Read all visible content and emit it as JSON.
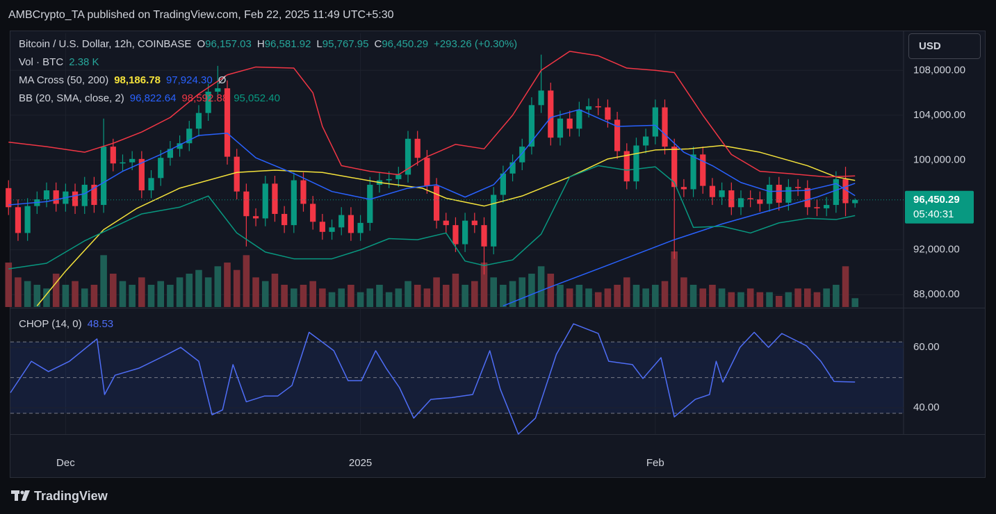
{
  "header": "AMBCrypto_TA published on TradingView.com, Feb 22, 2025 11:49 UTC+5:30",
  "footer": "TradingView",
  "currency": "USD",
  "chart_data": [
    {
      "type": "candlestick",
      "title": "Bitcoin / U.S. Dollar, 12h, COINBASE",
      "legend": {
        "ohlc_labels": [
          "O",
          "H",
          "L",
          "C"
        ],
        "ohlc_values": [
          "96,157.03",
          "96,581.92",
          "95,767.95",
          "96,450.29"
        ],
        "change": "+293.26 (+0.30%)"
      },
      "up_color": "#089981",
      "down_color": "#f23645",
      "x": [
        0,
        1,
        2,
        3,
        4,
        5,
        6,
        7,
        8,
        9,
        10,
        11,
        12,
        13,
        14,
        15,
        16,
        17,
        18,
        19,
        20,
        21,
        22,
        23,
        24,
        25,
        26,
        27,
        28,
        29,
        30,
        31,
        32,
        33,
        34,
        35,
        36,
        37,
        38,
        39,
        40,
        41,
        42,
        43,
        44,
        45,
        46,
        47,
        48,
        49,
        50,
        51,
        52,
        53,
        54,
        55,
        56,
        57,
        58,
        59,
        60,
        61,
        62,
        63,
        64,
        65,
        66,
        67,
        68,
        69,
        70,
        71,
        72,
        73,
        74,
        75,
        76,
        77,
        78,
        79,
        80,
        81,
        82,
        83,
        84,
        85,
        86,
        87,
        88,
        89
      ],
      "open": [
        97500,
        95800,
        93500,
        95900,
        96500,
        97300,
        96100,
        97200,
        95900,
        97800,
        96000,
        101200,
        99700,
        99800,
        100100,
        97300,
        98400,
        100200,
        101000,
        101500,
        102800,
        104200,
        106100,
        106400,
        100300,
        97200,
        95000,
        94800,
        97900,
        95200,
        94200,
        98200,
        96100,
        94500,
        93600,
        94000,
        95100,
        93500,
        94400,
        97800,
        98200,
        98300,
        98700,
        101900,
        100200,
        97700,
        94600,
        94200,
        92500,
        94600,
        94200,
        92300,
        96900,
        98800,
        99800,
        101200,
        104900,
        106200,
        102000,
        103700,
        102800,
        104500,
        104800,
        104700,
        103600,
        100800,
        98100,
        101300,
        102100,
        104700,
        101200,
        97600,
        97400,
        100500,
        97700,
        96700,
        97300,
        95800,
        96600,
        96500,
        96100,
        97800,
        96200,
        97600,
        97500,
        95800,
        95700,
        96000,
        98300,
        96157.03
      ],
      "high": [
        98200,
        96500,
        96600,
        97200,
        98000,
        98000,
        97900,
        97900,
        98500,
        98500,
        103700,
        101900,
        100500,
        100800,
        100800,
        99100,
        100900,
        101700,
        102200,
        103500,
        104900,
        106800,
        108400,
        107100,
        101000,
        97900,
        95700,
        98600,
        98600,
        95900,
        98900,
        98900,
        96800,
        95200,
        94700,
        95800,
        95800,
        95100,
        98500,
        98900,
        99000,
        99400,
        102600,
        102600,
        100900,
        98400,
        95300,
        94900,
        95300,
        95300,
        94900,
        97600,
        99500,
        100500,
        101900,
        105600,
        109400,
        106900,
        104400,
        104400,
        105200,
        105500,
        105500,
        105400,
        104300,
        101500,
        102000,
        102800,
        105400,
        105400,
        101900,
        98300,
        101200,
        101200,
        98400,
        98000,
        98000,
        97300,
        97300,
        97200,
        98500,
        98500,
        98300,
        98300,
        98200,
        96500,
        96700,
        99000,
        99400,
        96581.92
      ],
      "low": [
        95100,
        92800,
        92800,
        95200,
        95800,
        95400,
        95400,
        95200,
        95200,
        95300,
        95300,
        99000,
        99000,
        99100,
        96600,
        96600,
        97700,
        99500,
        100300,
        100800,
        102100,
        103500,
        105400,
        99600,
        96500,
        92300,
        94100,
        94100,
        94500,
        93500,
        93500,
        95400,
        93800,
        92900,
        92900,
        93300,
        92800,
        92800,
        93700,
        97100,
        97500,
        97600,
        98000,
        99500,
        97000,
        93900,
        93500,
        91800,
        91800,
        93500,
        89800,
        91600,
        96200,
        98100,
        99100,
        100500,
        104200,
        101300,
        101300,
        102100,
        102100,
        103800,
        104000,
        102900,
        100100,
        97400,
        97400,
        100600,
        101400,
        100500,
        91200,
        96700,
        96700,
        97000,
        96000,
        96000,
        95100,
        95100,
        95800,
        95400,
        95400,
        95500,
        95500,
        96800,
        95100,
        95000,
        95000,
        95300,
        95000,
        95767.95
      ],
      "close": [
        95800,
        93500,
        95900,
        96500,
        97300,
        96100,
        97200,
        95900,
        97800,
        96000,
        101200,
        99700,
        99800,
        100100,
        97300,
        98400,
        100200,
        101000,
        101500,
        102800,
        104200,
        106100,
        106400,
        100300,
        97200,
        95000,
        94800,
        97900,
        95200,
        94200,
        98200,
        96100,
        94500,
        93600,
        94000,
        95100,
        93500,
        94400,
        97800,
        98200,
        98300,
        98700,
        101900,
        100200,
        97700,
        94600,
        94200,
        92500,
        94600,
        94200,
        92300,
        96900,
        98800,
        99800,
        101200,
        104900,
        106200,
        102000,
        103700,
        102800,
        104500,
        104800,
        104700,
        103600,
        100800,
        98100,
        101300,
        102100,
        104700,
        101200,
        97600,
        97400,
        100500,
        97700,
        96700,
        97300,
        95800,
        96600,
        96500,
        96100,
        97800,
        96200,
        97600,
        97500,
        95800,
        95700,
        96000,
        98300,
        96157.03,
        96450.29
      ],
      "price_label": "96,450.29",
      "countdown": "05:40:31",
      "volume": {
        "name": "Vol · BTC",
        "value_label": "2.38 K",
        "values": [
          12,
          8,
          7,
          6,
          5,
          9,
          6,
          7,
          5,
          6,
          14,
          9,
          7,
          6,
          8,
          6,
          7,
          6,
          8,
          9,
          10,
          8,
          11,
          12,
          10,
          14,
          8,
          7,
          9,
          6,
          5,
          6,
          7,
          5,
          4,
          5,
          6,
          4,
          5,
          6,
          4,
          5,
          7,
          6,
          5,
          8,
          6,
          9,
          6,
          7,
          12,
          8,
          6,
          7,
          8,
          9,
          11,
          9,
          6,
          5,
          6,
          5,
          4,
          5,
          6,
          8,
          6,
          5,
          6,
          7,
          15,
          8,
          6,
          5,
          6,
          5,
          4,
          4,
          5,
          4,
          4,
          3,
          4,
          5,
          5,
          4,
          5,
          6,
          11,
          2.38
        ],
        "up_color": "#1e5f56",
        "down_color": "#7d2e36"
      },
      "indicators": [
        {
          "name": "MA Cross (50, 200)",
          "value_labels": [
            "98,186.78",
            "97,924.30"
          ],
          "extra": "Ø",
          "lines": [
            {
              "color": "#f5e33b",
              "x": [
                3,
                6,
                10,
                13.5,
                18,
                24,
                28,
                33,
                39,
                43.5,
                46,
                50,
                54,
                59,
                63,
                68,
                71.5,
                75,
                79,
                84,
                87,
                89
              ],
              "values": [
                87000,
                90100,
                93800,
                95700,
                97500,
                98900,
                99100,
                98900,
                98000,
                97500,
                96600,
                95900,
                96800,
                98500,
                100100,
                100900,
                101000,
                101300,
                100700,
                99500,
                98500,
                98186.78
              ]
            },
            {
              "color": "#2962ff",
              "x": [
                52,
                57,
                62,
                66,
                70,
                75,
                80,
                85,
                89
              ],
              "values": [
                87000,
                88700,
                90300,
                91600,
                92900,
                94300,
                95500,
                96700,
                97924.3
              ]
            }
          ]
        },
        {
          "name": "BB (20, SMA, close, 2)",
          "value_labels": [
            "96,822.64",
            "98,592.88",
            "95,052.40"
          ],
          "lines": [
            {
              "color": "#2962ff",
              "x": [
                0,
                4,
                8,
                12,
                16,
                20,
                23,
                26,
                30,
                34,
                38,
                42,
                45,
                48,
                51,
                54,
                57,
                60,
                64,
                68,
                71,
                74,
                77,
                80,
                84,
                87,
                89
              ],
              "values": [
                96000,
                96300,
                97000,
                99000,
                100500,
                102200,
                102400,
                100200,
                98800,
                97200,
                96500,
                97500,
                97800,
                96700,
                97800,
                100600,
                103800,
                104500,
                103000,
                103100,
                100700,
                99500,
                98000,
                97200,
                97300,
                97900,
                96822.64
              ]
            },
            {
              "color": "#f23645",
              "x": [
                0,
                4,
                8,
                11,
                14,
                17,
                20,
                23,
                26,
                30,
                32,
                33,
                35,
                38,
                41,
                44,
                47,
                50,
                53,
                56,
                59,
                62,
                65,
                68,
                70,
                73,
                76,
                79,
                82,
                86,
                89
              ],
              "values": [
                101600,
                101200,
                100700,
                101500,
                102500,
                103800,
                105900,
                107600,
                108300,
                108200,
                106000,
                103000,
                99500,
                99000,
                98700,
                100300,
                101400,
                101000,
                104000,
                108000,
                109700,
                109300,
                108200,
                108000,
                107800,
                104000,
                100500,
                99000,
                98800,
                98500,
                98592.88
              ]
            },
            {
              "color": "#089981",
              "x": [
                0,
                4,
                8,
                11,
                14,
                18,
                21,
                24,
                27,
                30,
                34,
                37,
                40,
                43,
                46,
                48,
                50,
                53,
                56,
                59,
                62,
                65,
                68,
                70,
                72,
                75,
                78,
                81,
                84,
                87,
                89
              ],
              "values": [
                90300,
                90800,
                92800,
                94000,
                95200,
                95800,
                96800,
                93500,
                91800,
                91200,
                91200,
                92000,
                93000,
                92900,
                93500,
                91000,
                90600,
                91100,
                93400,
                98500,
                99500,
                99100,
                99400,
                98000,
                94000,
                94100,
                93500,
                94400,
                94800,
                94700,
                95052.4
              ]
            }
          ]
        }
      ],
      "xlim": [
        0.2,
        94.1
      ],
      "xticks": [
        {
          "value": 6,
          "label": "Dec"
        },
        {
          "value": 37,
          "label": "2025"
        },
        {
          "value": 68,
          "label": "Feb"
        }
      ],
      "ylim": [
        86900,
        111300
      ],
      "yticks": [
        {
          "value": 108000,
          "label": "108,000.00"
        },
        {
          "value": 104000,
          "label": "104,000.00"
        },
        {
          "value": 100000,
          "label": "100,000.00"
        },
        {
          "value": 92000,
          "label": "92,000.00"
        },
        {
          "value": 88000,
          "label": "88,000.00"
        }
      ],
      "grid": true
    },
    {
      "type": "line",
      "title": "CHOP (14, 0)",
      "value_label": "48.53",
      "color": "#4f6ef7",
      "x": [
        0.2,
        2.4,
        4.2,
        6.4,
        9.3,
        10.1,
        11.2,
        13.7,
        16.7,
        18.1,
        20,
        21.4,
        22.5,
        23.6,
        25,
        26.9,
        28.3,
        29.8,
        31.6,
        34.2,
        35.7,
        37.1,
        38.6,
        39.7,
        41.1,
        42.6,
        44.4,
        46.6,
        48.8,
        50.6,
        51.7,
        53.6,
        55.4,
        57.6,
        59.4,
        62,
        63.1,
        65.6,
        66.7,
        68.6,
        70,
        72.2,
        73.7,
        74.4,
        75.1,
        76.9,
        78.4,
        79.9,
        81.3,
        83.9,
        85.4,
        86.8,
        89
      ],
      "values": [
        45,
        55.4,
        52,
        55.4,
        62.8,
        44.4,
        50.8,
        53.1,
        57.7,
        60,
        55.4,
        37.7,
        39.3,
        54.3,
        42,
        43.9,
        43.9,
        47.4,
        65,
        58.9,
        49,
        49,
        58.9,
        53.1,
        46.7,
        36.6,
        42.8,
        43.4,
        44.4,
        58.9,
        46.2,
        31.3,
        36.6,
        57.7,
        67.8,
        64.6,
        55.4,
        54.3,
        49.7,
        56.6,
        37,
        42.8,
        44.4,
        55.4,
        48.5,
        60,
        65,
        60,
        64.6,
        60.5,
        55.4,
        48.7,
        48.53
      ],
      "bands": [
        61.8,
        50,
        38.2
      ],
      "xlim": [
        0.2,
        94.1
      ],
      "ylim": [
        31.3,
        72.9
      ],
      "yticks": [
        {
          "value": 60,
          "label": "60.00"
        },
        {
          "value": 40,
          "label": "40.00"
        }
      ],
      "grid": true
    }
  ]
}
